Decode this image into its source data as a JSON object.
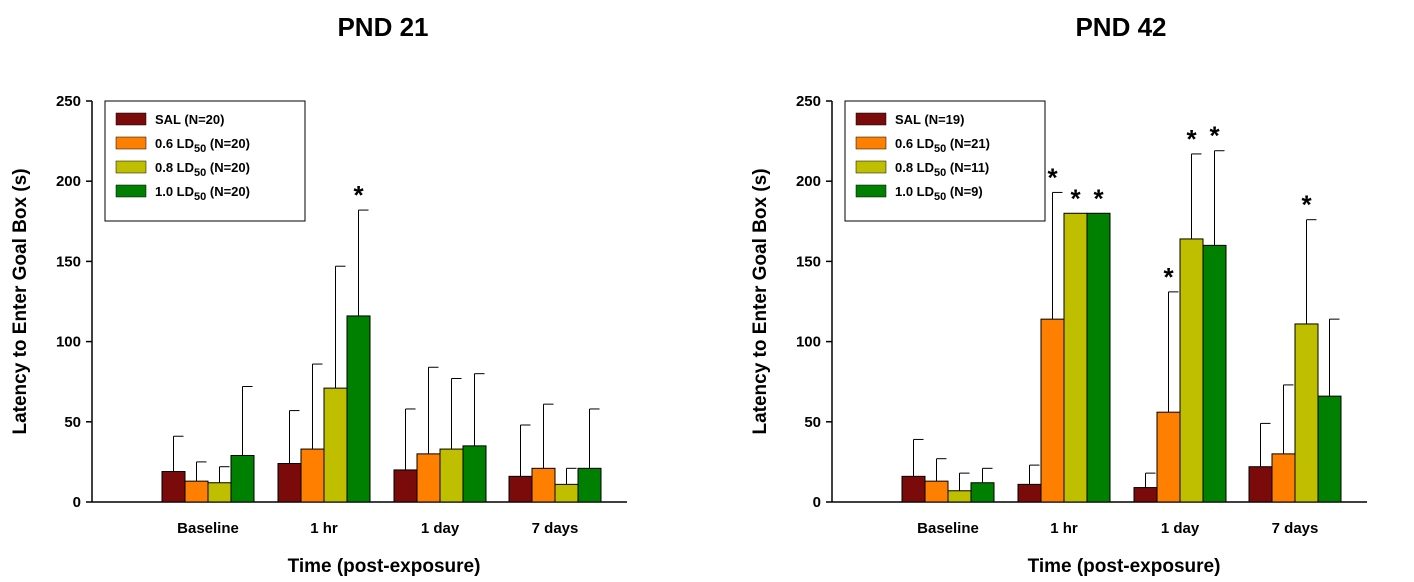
{
  "chart_data": [
    {
      "type": "bar",
      "title": "PND 21",
      "xlabel": "Time (post-exposure)",
      "ylabel": "Latency to Enter Goal Box (s)",
      "ylim": [
        0,
        250
      ],
      "yticks": [
        0,
        50,
        100,
        150,
        200,
        250
      ],
      "categories": [
        "Baseline",
        "1 hr",
        "1 day",
        "7 days"
      ],
      "legend_position": "top-left",
      "series": [
        {
          "name": "SAL (N=20)",
          "label_main": "SAL (N=20)",
          "label_sub": "",
          "label_tail": "",
          "color": "#7b0a0a",
          "values": [
            19,
            24,
            20,
            16
          ],
          "errors": [
            41,
            57,
            58,
            48
          ],
          "significant": [
            false,
            false,
            false,
            false
          ]
        },
        {
          "name": "0.6 LD50 (N=20)",
          "label_main": "0.6 LD",
          "label_sub": "50",
          "label_tail": " (N=20)",
          "color": "#ff8000",
          "values": [
            13,
            33,
            30,
            21
          ],
          "errors": [
            25,
            86,
            84,
            61
          ],
          "significant": [
            false,
            false,
            false,
            false
          ]
        },
        {
          "name": "0.8 LD50 (N=20)",
          "label_main": "0.8 LD",
          "label_sub": "50",
          "label_tail": " (N=20)",
          "color": "#bfbf00",
          "values": [
            12,
            71,
            33,
            11
          ],
          "errors": [
            22,
            147,
            77,
            21
          ],
          "significant": [
            false,
            false,
            false,
            false
          ]
        },
        {
          "name": "1.0 LD50 (N=20)",
          "label_main": "1.0 LD",
          "label_sub": "50",
          "label_tail": " (N=20)",
          "color": "#008000",
          "values": [
            29,
            116,
            35,
            21
          ],
          "errors": [
            72,
            182,
            80,
            58
          ],
          "significant": [
            false,
            true,
            false,
            false
          ]
        }
      ]
    },
    {
      "type": "bar",
      "title": "PND 42",
      "xlabel": "Time (post-exposure)",
      "ylabel": "Latency to Enter Goal Box (s)",
      "ylim": [
        0,
        250
      ],
      "yticks": [
        0,
        50,
        100,
        150,
        200,
        250
      ],
      "categories": [
        "Baseline",
        "1 hr",
        "1 day",
        "7 days"
      ],
      "legend_position": "top-left",
      "series": [
        {
          "name": "SAL (N=19)",
          "label_main": "SAL (N=19)",
          "label_sub": "",
          "label_tail": "",
          "color": "#7b0a0a",
          "values": [
            16,
            11,
            9,
            22
          ],
          "errors": [
            39,
            23,
            18,
            49
          ],
          "significant": [
            false,
            false,
            false,
            false
          ]
        },
        {
          "name": "0.6 LD50 (N=21)",
          "label_main": "0.6 LD",
          "label_sub": "50",
          "label_tail": " (N=21)",
          "color": "#ff8000",
          "values": [
            13,
            114,
            56,
            30
          ],
          "errors": [
            27,
            193,
            131,
            73
          ],
          "significant": [
            false,
            true,
            true,
            false
          ]
        },
        {
          "name": "0.8 LD50 (N=11)",
          "label_main": "0.8 LD",
          "label_sub": "50",
          "label_tail": " (N=11)",
          "color": "#bfbf00",
          "values": [
            7,
            180,
            164,
            111
          ],
          "errors": [
            18,
            180,
            217,
            176
          ],
          "significant": [
            false,
            true,
            true,
            true
          ]
        },
        {
          "name": "1.0 LD50 (N=9)",
          "label_main": "1.0 LD",
          "label_sub": "50",
          "label_tail": " (N=9)",
          "color": "#008000",
          "values": [
            12,
            180,
            160,
            66
          ],
          "errors": [
            21,
            180,
            219,
            114
          ],
          "significant": [
            false,
            true,
            true,
            false
          ]
        }
      ]
    }
  ]
}
